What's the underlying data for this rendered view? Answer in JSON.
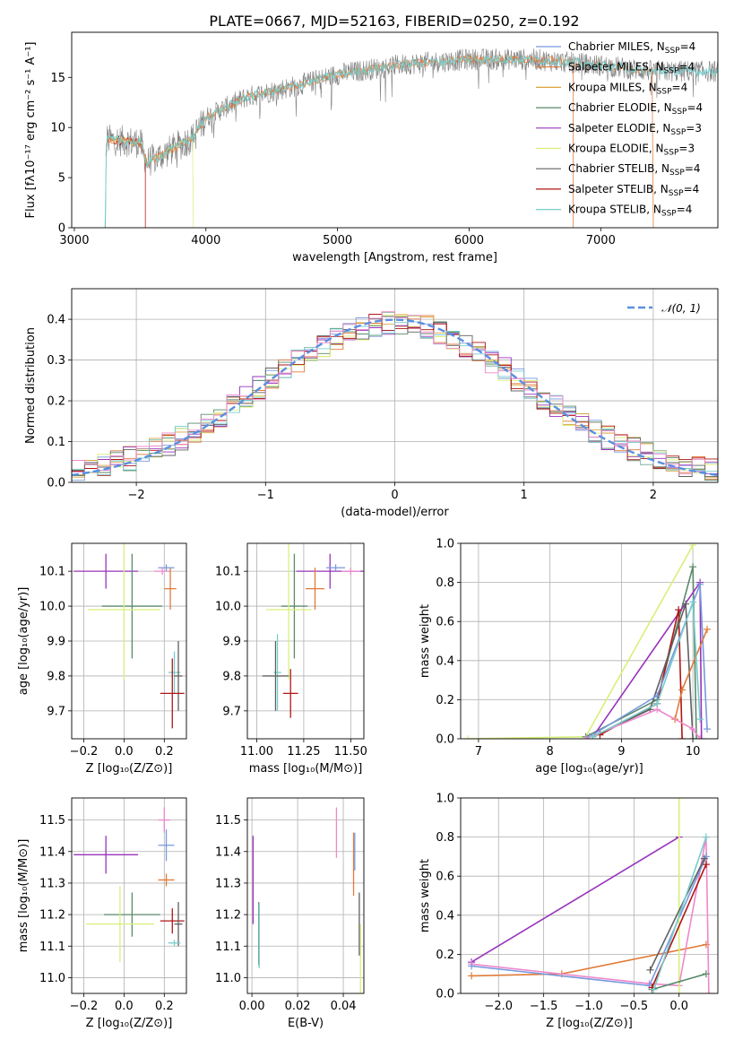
{
  "title": "PLATE=0667, MJD=52163, FIBERID=0250, z=0.192",
  "series_colors": {
    "chabrier_miles": "#7799dd",
    "salpeter_miles": "#e07b39",
    "kroupa_miles": "#d9a441",
    "chabrier_elodie": "#5a8a6a",
    "salpeter_elodie": "#9933bb",
    "kroupa_elodie": "#d7f07a",
    "chabrier_stelib": "#606060",
    "salpeter_stelib": "#b01515",
    "kroupa_stelib": "#77cccc",
    "pink": "#ee88cc",
    "gauss": "#5b8fe0"
  },
  "chart_data": [
    {
      "id": "spectrum",
      "type": "line",
      "xlabel": "wavelength [Angstrom, rest frame]",
      "ylabel": "Flux [fλ10⁻¹⁷ erg cm⁻² s⁻¹ A⁻¹]",
      "xlim": [
        2980,
        7890
      ],
      "ylim": [
        0,
        19.5
      ],
      "xticks": [
        3000,
        4000,
        5000,
        6000,
        7000
      ],
      "yticks": [
        0,
        5,
        10,
        15
      ],
      "legend": [
        {
          "label": "Chabrier MILES, N",
          "sub": "SSP",
          "tail": "=4",
          "color": "#7799dd"
        },
        {
          "label": "Salpeter MILES, N",
          "sub": "SSP",
          "tail": "=4",
          "color": "#e07b39"
        },
        {
          "label": "Kroupa MILES, N",
          "sub": "SSP",
          "tail": "=4",
          "color": "#d9a441"
        },
        {
          "label": "Chabrier ELODIE, N",
          "sub": "SSP",
          "tail": "=4",
          "color": "#5a8a6a"
        },
        {
          "label": "Salpeter ELODIE, N",
          "sub": "SSP",
          "tail": "=3",
          "color": "#9933bb"
        },
        {
          "label": "Kroupa ELODIE, N",
          "sub": "SSP",
          "tail": "=3",
          "color": "#d7f07a"
        },
        {
          "label": "Chabrier STELIB, N",
          "sub": "SSP",
          "tail": "=4",
          "color": "#606060"
        },
        {
          "label": "Salpeter STELIB, N",
          "sub": "SSP",
          "tail": "=4",
          "color": "#b01515"
        },
        {
          "label": "Kroupa STELIB, N",
          "sub": "SSP",
          "tail": "=4",
          "color": "#77cccc"
        }
      ],
      "continuum": {
        "x": [
          3200,
          3250,
          3500,
          3550,
          3700,
          3900,
          4000,
          4300,
          4700,
          5000,
          5500,
          6000,
          6500,
          7000,
          7400
        ],
        "y": [
          0,
          8.8,
          8.5,
          6.5,
          7.5,
          9.0,
          11.0,
          13.0,
          14.2,
          15.3,
          16.3,
          16.8,
          16.8,
          16.2,
          15.6
        ]
      },
      "model_cutoffs": [
        {
          "series": "salpeter_stelib",
          "start": 3240,
          "end": 3540
        },
        {
          "series": "kroupa_elodie",
          "start": 3250,
          "end": 3905
        },
        {
          "series": "salpeter_miles",
          "start": 3250,
          "end": 6790
        },
        {
          "series": "salpeter_miles",
          "start": 3250,
          "end": 7400
        }
      ]
    },
    {
      "id": "residual_hist",
      "type": "step",
      "xlabel": "(data-model)/error",
      "ylabel": "Normed distribution",
      "xlim": [
        -2.5,
        2.5
      ],
      "ylim": [
        0,
        0.475
      ],
      "xticks": [
        -2,
        -1,
        0,
        1,
        2
      ],
      "xticklabels": [
        "−2",
        "−1",
        "0",
        "1",
        "2"
      ],
      "yticks": [
        0.0,
        0.1,
        0.2,
        0.3,
        0.4
      ],
      "yticklabels": [
        "0.0",
        "0.1",
        "0.2",
        "0.3",
        "0.4"
      ],
      "legend_label": "𝒩(0, 1)",
      "bin_width": 0.1
    },
    {
      "id": "age_vs_Z",
      "type": "errorbar",
      "xlabel": "Z [log₁₀(Z/Z⊙)]",
      "ylabel": "age  [log₁₀(age/yr)]",
      "xlim": [
        -0.26,
        0.31
      ],
      "ylim": [
        9.62,
        10.18
      ],
      "xticks": [
        -0.2,
        0.0,
        0.2
      ],
      "xticklabels": [
        "−0.2",
        "0.0",
        "0.2"
      ],
      "yticks": [
        9.7,
        9.8,
        9.9,
        10.0,
        10.1
      ],
      "yticklabels": [
        "9.7",
        "9.8",
        "9.9",
        "10.0",
        "10.1"
      ],
      "points": [
        {
          "c": "salpeter_elodie",
          "x": -0.09,
          "y": 10.1,
          "xe": 0.16,
          "ye": 0.05
        },
        {
          "c": "chabrier_miles",
          "x": 0.21,
          "y": 10.11,
          "xe": 0.04,
          "ye": 0.01
        },
        {
          "c": "pink",
          "x": 0.19,
          "y": 10.1,
          "xe": 0.04,
          "ye": 0.01
        },
        {
          "c": "salpeter_miles",
          "x": 0.23,
          "y": 10.05,
          "xe": 0.03,
          "ye": 0.06
        },
        {
          "c": "chabrier_elodie",
          "x": 0.04,
          "y": 10.0,
          "xe": 0.15,
          "ye": 0.15
        },
        {
          "c": "kroupa_elodie",
          "x": 0.0,
          "y": 9.99,
          "xe": 0.18,
          "ye": 0.2
        },
        {
          "c": "kroupa_stelib",
          "x": 0.25,
          "y": 9.81,
          "xe": 0.03,
          "ye": 0.06
        },
        {
          "c": "chabrier_stelib",
          "x": 0.27,
          "y": 9.8,
          "xe": 0.02,
          "ye": 0.1
        },
        {
          "c": "salpeter_stelib",
          "x": 0.24,
          "y": 9.75,
          "xe": 0.06,
          "ye": 0.1
        }
      ]
    },
    {
      "id": "age_vs_mass",
      "type": "errorbar",
      "xlabel": "mass [log₁₀(M/M⊙)]",
      "ylabel": "",
      "xlim": [
        10.95,
        11.57
      ],
      "ylim": [
        9.62,
        10.18
      ],
      "xticks": [
        11.0,
        11.25,
        11.5
      ],
      "xticklabels": [
        "11.00",
        "11.25",
        "11.50"
      ],
      "yticks": [
        9.7,
        9.8,
        9.9,
        10.0,
        10.1
      ],
      "yticklabels": [
        "9.7",
        "9.8",
        "9.9",
        "10.0",
        "10.1"
      ],
      "points": [
        {
          "c": "salpeter_elodie",
          "x": 11.39,
          "y": 10.1,
          "xe": 0.18,
          "ye": 0.05
        },
        {
          "c": "chabrier_miles",
          "x": 11.42,
          "y": 10.11,
          "xe": 0.05,
          "ye": 0.01
        },
        {
          "c": "pink",
          "x": 11.5,
          "y": 10.1,
          "xe": 0.05,
          "ye": 0.01
        },
        {
          "c": "salpeter_miles",
          "x": 11.31,
          "y": 10.05,
          "xe": 0.05,
          "ye": 0.06
        },
        {
          "c": "chabrier_elodie",
          "x": 11.2,
          "y": 10.0,
          "xe": 0.07,
          "ye": 0.15
        },
        {
          "c": "kroupa_elodie",
          "x": 11.17,
          "y": 9.99,
          "xe": 0.12,
          "ye": 0.2
        },
        {
          "c": "kroupa_stelib",
          "x": 11.11,
          "y": 9.81,
          "xe": 0.02,
          "ye": 0.11
        },
        {
          "c": "chabrier_stelib",
          "x": 11.1,
          "y": 9.8,
          "xe": 0.07,
          "ye": 0.1
        },
        {
          "c": "salpeter_stelib",
          "x": 11.18,
          "y": 9.75,
          "xe": 0.04,
          "ye": 0.07
        }
      ]
    },
    {
      "id": "mass_weight_vs_age",
      "type": "line",
      "xlabel": "age  [log₁₀(age/yr)]",
      "ylabel": "mass weight",
      "xlim": [
        6.75,
        10.35
      ],
      "ylim": [
        0,
        1.0
      ],
      "xticks": [
        7,
        8,
        9,
        10
      ],
      "xticklabels": [
        "7",
        "8",
        "9",
        "10"
      ],
      "yticks": [
        0,
        0.2,
        0.4,
        0.6,
        0.8,
        1.0
      ],
      "yticklabels": [
        "0.0",
        "0.2",
        "0.4",
        "0.6",
        "0.8",
        "1.0"
      ],
      "lines": [
        {
          "c": "kroupa_elodie",
          "x": [
            6.85,
            8.5,
            10.0
          ],
          "y": [
            0.0,
            0.01,
            0.99
          ]
        },
        {
          "c": "chabrier_elodie",
          "x": [
            8.5,
            9.5,
            10.0,
            10.05
          ],
          "y": [
            0.01,
            0.2,
            0.88,
            0.0
          ]
        },
        {
          "c": "salpeter_elodie",
          "x": [
            8.6,
            10.1,
            10.12
          ],
          "y": [
            0.01,
            0.8,
            0.0
          ]
        },
        {
          "c": "salpeter_stelib",
          "x": [
            8.7,
            9.5,
            9.8,
            9.85
          ],
          "y": [
            0.02,
            0.18,
            0.66,
            0.0
          ]
        },
        {
          "c": "chabrier_stelib",
          "x": [
            8.6,
            9.4,
            9.9,
            10.0
          ],
          "y": [
            0.01,
            0.15,
            0.69,
            0.0
          ]
        },
        {
          "c": "chabrier_miles",
          "x": [
            8.55,
            9.5,
            10.1,
            10.2
          ],
          "y": [
            0.01,
            0.22,
            0.79,
            0.05
          ]
        },
        {
          "c": "salpeter_miles",
          "x": [
            9.75,
            9.85,
            10.2
          ],
          "y": [
            0.1,
            0.25,
            0.56
          ]
        },
        {
          "c": "pink",
          "x": [
            8.5,
            9.5,
            10.0,
            10.1
          ],
          "y": [
            0.0,
            0.15,
            0.05,
            0.0
          ]
        },
        {
          "c": "kroupa_stelib",
          "x": [
            8.6,
            9.5,
            10.0,
            10.1
          ],
          "y": [
            0.01,
            0.18,
            0.7,
            0.1
          ]
        }
      ]
    },
    {
      "id": "mass_vs_Z",
      "type": "errorbar",
      "xlabel": "Z [log₁₀(Z/Z⊙)]",
      "ylabel": "mass [log₁₀(M/M⊙)]",
      "xlim": [
        -0.26,
        0.31
      ],
      "ylim": [
        10.95,
        11.57
      ],
      "xticks": [
        -0.2,
        0.0,
        0.2
      ],
      "xticklabels": [
        "−0.2",
        "0.0",
        "0.2"
      ],
      "yticks": [
        11.0,
        11.1,
        11.2,
        11.3,
        11.4,
        11.5
      ],
      "yticklabels": [
        "11.0",
        "11.1",
        "11.2",
        "11.3",
        "11.4",
        "11.5"
      ],
      "points": [
        {
          "c": "pink",
          "x": 0.2,
          "y": 11.5,
          "xe": 0.03,
          "ye": 0.04
        },
        {
          "c": "salpeter_elodie",
          "x": -0.09,
          "y": 11.39,
          "xe": 0.16,
          "ye": 0.06
        },
        {
          "c": "chabrier_miles",
          "x": 0.21,
          "y": 11.42,
          "xe": 0.04,
          "ye": 0.05
        },
        {
          "c": "salpeter_miles",
          "x": 0.21,
          "y": 11.31,
          "xe": 0.04,
          "ye": 0.02
        },
        {
          "c": "chabrier_elodie",
          "x": 0.04,
          "y": 11.2,
          "xe": 0.14,
          "ye": 0.07
        },
        {
          "c": "kroupa_elodie",
          "x": -0.02,
          "y": 11.17,
          "xe": 0.17,
          "ye": 0.12
        },
        {
          "c": "salpeter_stelib",
          "x": 0.24,
          "y": 11.18,
          "xe": 0.06,
          "ye": 0.04
        },
        {
          "c": "chabrier_stelib",
          "x": 0.27,
          "y": 11.17,
          "xe": 0.02,
          "ye": 0.07
        },
        {
          "c": "kroupa_stelib",
          "x": 0.25,
          "y": 11.11,
          "xe": 0.03,
          "ye": 0.01
        }
      ]
    },
    {
      "id": "mass_vs_EBV",
      "type": "errorbar",
      "xlabel": "E(B-V)",
      "ylabel": "",
      "xlim": [
        -0.002,
        0.049
      ],
      "ylim": [
        10.95,
        11.57
      ],
      "xticks": [
        0.0,
        0.02,
        0.04
      ],
      "xticklabels": [
        "0.00",
        "0.02",
        "0.04"
      ],
      "yticks": [
        11.0,
        11.1,
        11.2,
        11.3,
        11.4,
        11.5
      ],
      "yticklabels": [
        "11.0",
        "11.1",
        "11.2",
        "11.3",
        "11.4",
        "11.5"
      ],
      "points": [
        {
          "c": "salpeter_elodie",
          "x": 0.0005,
          "y": 11.31,
          "xe": 0,
          "ye": 0.14
        },
        {
          "c": "chabrier_elodie",
          "x": 0.003,
          "y": 11.14,
          "xe": 0,
          "ye": 0.1
        },
        {
          "c": "kroupa_stelib",
          "x": 0.0032,
          "y": 11.13,
          "xe": 0,
          "ye": 0.1
        },
        {
          "c": "pink",
          "x": 0.037,
          "y": 11.46,
          "xe": 0,
          "ye": 0.08
        },
        {
          "c": "salpeter_miles",
          "x": 0.0445,
          "y": 11.36,
          "xe": 0,
          "ye": 0.1
        },
        {
          "c": "chabrier_miles",
          "x": 0.045,
          "y": 11.4,
          "xe": 0,
          "ye": 0.06
        },
        {
          "c": "chabrier_stelib",
          "x": 0.047,
          "y": 11.17,
          "xe": 0,
          "ye": 0.1
        },
        {
          "c": "kroupa_elodie",
          "x": 0.0475,
          "y": 11.05,
          "xe": 0,
          "ye": 0.12
        }
      ]
    },
    {
      "id": "mass_weight_vs_Z",
      "type": "line",
      "xlabel": "Z [log₁₀(Z/Z⊙)]",
      "ylabel": "mass weight",
      "xlim": [
        -2.42,
        0.43
      ],
      "ylim": [
        0,
        1.0
      ],
      "xticks": [
        -2.0,
        -1.5,
        -1.0,
        -0.5,
        0.0
      ],
      "xticklabels": [
        "−2.0",
        "−1.5",
        "−1.0",
        "−0.5",
        "0.0"
      ],
      "yticks": [
        0,
        0.2,
        0.4,
        0.6,
        0.8,
        1.0
      ],
      "yticklabels": [
        "0.0",
        "0.2",
        "0.4",
        "0.6",
        "0.8",
        "1.0"
      ],
      "lines": [
        {
          "c": "salpeter_elodie",
          "x": [
            -2.3,
            0.0
          ],
          "y": [
            0.16,
            0.8
          ]
        },
        {
          "c": "salpeter_miles",
          "x": [
            -2.3,
            -1.3,
            0.3
          ],
          "y": [
            0.09,
            0.1,
            0.25
          ]
        },
        {
          "c": "pink",
          "x": [
            -2.3,
            -0.33,
            0.0,
            0.3,
            0.33
          ],
          "y": [
            0.15,
            0.05,
            0.04,
            0.8,
            0.0
          ]
        },
        {
          "c": "chabrier_miles",
          "x": [
            -2.3,
            -0.33,
            0.3
          ],
          "y": [
            0.14,
            0.04,
            0.7
          ]
        },
        {
          "c": "kroupa_elodie",
          "x": [
            0.0,
            0.0
          ],
          "y": [
            0.0,
            1.0
          ]
        },
        {
          "c": "chabrier_elodie",
          "x": [
            -0.3,
            0.3
          ],
          "y": [
            0.02,
            0.1
          ]
        },
        {
          "c": "salpeter_stelib",
          "x": [
            -0.3,
            0.3
          ],
          "y": [
            0.03,
            0.66
          ]
        },
        {
          "c": "chabrier_stelib",
          "x": [
            -0.32,
            0.28
          ],
          "y": [
            0.12,
            0.69
          ]
        },
        {
          "c": "kroupa_stelib",
          "x": [
            -0.28,
            0.3
          ],
          "y": [
            0.02,
            0.8
          ]
        }
      ]
    }
  ]
}
